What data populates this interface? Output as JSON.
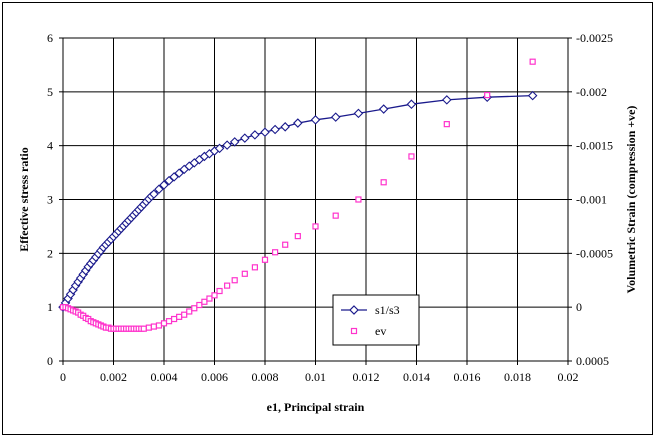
{
  "chart_data": {
    "type": "scatter",
    "xlabel": "e1, Principal strain",
    "ylabel": "Effective stress ratio",
    "y2label": "Volumetric Strain (compression +ve)",
    "xlim": [
      0,
      0.02
    ],
    "ylim": [
      0,
      6
    ],
    "y2lim": [
      0.0005,
      -0.0025
    ],
    "x_ticks": [
      "0",
      "0.002",
      "0.004",
      "0.006",
      "0.008",
      "0.01",
      "0.012",
      "0.014",
      "0.016",
      "0.018",
      "0.02"
    ],
    "y_ticks": [
      "0",
      "1",
      "2",
      "3",
      "4",
      "5",
      "6"
    ],
    "y2_ticks": [
      "-0.0025",
      "-0.002",
      "-0.0015",
      "-0.001",
      "-0.0005",
      "0",
      "0.0005"
    ],
    "grid": true,
    "legend_position": "bottom-center",
    "series": [
      {
        "name": "s1/s3",
        "axis": "left",
        "style": "line-diamond",
        "color": "#1a1a8c",
        "x": [
          0,
          0.0001,
          0.0002,
          0.0003,
          0.0004,
          0.0005,
          0.0006,
          0.0007,
          0.0008,
          0.0009,
          0.001,
          0.0011,
          0.0012,
          0.0013,
          0.0014,
          0.0015,
          0.0016,
          0.0017,
          0.0018,
          0.0019,
          0.002,
          0.0021,
          0.0022,
          0.0023,
          0.0024,
          0.0025,
          0.0026,
          0.0027,
          0.0028,
          0.0029,
          0.003,
          0.0031,
          0.0032,
          0.0033,
          0.0034,
          0.0035,
          0.0036,
          0.0038,
          0.004,
          0.0042,
          0.0044,
          0.0046,
          0.0048,
          0.005,
          0.0052,
          0.0054,
          0.0056,
          0.0058,
          0.006,
          0.0062,
          0.0065,
          0.0068,
          0.0072,
          0.0076,
          0.008,
          0.0084,
          0.0088,
          0.0093,
          0.01,
          0.0108,
          0.0117,
          0.0127,
          0.0138,
          0.0152,
          0.0168,
          0.0186
        ],
        "y": [
          1.0,
          1.08,
          1.16,
          1.24,
          1.32,
          1.4,
          1.47,
          1.54,
          1.61,
          1.68,
          1.75,
          1.81,
          1.87,
          1.93,
          1.99,
          2.05,
          2.11,
          2.16,
          2.21,
          2.26,
          2.31,
          2.36,
          2.41,
          2.46,
          2.51,
          2.56,
          2.61,
          2.66,
          2.71,
          2.76,
          2.81,
          2.86,
          2.91,
          2.96,
          3.01,
          3.06,
          3.1,
          3.19,
          3.27,
          3.35,
          3.42,
          3.49,
          3.56,
          3.62,
          3.68,
          3.74,
          3.8,
          3.85,
          3.9,
          3.95,
          4.01,
          4.07,
          4.14,
          4.2,
          4.25,
          4.3,
          4.35,
          4.42,
          4.48,
          4.53,
          4.6,
          4.68,
          4.77,
          4.85,
          4.9,
          4.93
        ]
      },
      {
        "name": "ev",
        "axis": "right",
        "style": "marker-square",
        "color": "#ff33cc",
        "x": [
          0,
          0.0001,
          0.0002,
          0.0003,
          0.0004,
          0.0005,
          0.0006,
          0.0007,
          0.0008,
          0.0009,
          0.001,
          0.0011,
          0.0012,
          0.0013,
          0.0014,
          0.0015,
          0.0016,
          0.0017,
          0.0018,
          0.0019,
          0.002,
          0.0021,
          0.0022,
          0.0023,
          0.0024,
          0.0025,
          0.0026,
          0.0027,
          0.0028,
          0.0029,
          0.003,
          0.0031,
          0.0032,
          0.0034,
          0.0036,
          0.0038,
          0.004,
          0.0042,
          0.0044,
          0.0046,
          0.0048,
          0.005,
          0.0052,
          0.0054,
          0.0056,
          0.0058,
          0.006,
          0.0062,
          0.0065,
          0.0068,
          0.0072,
          0.0076,
          0.008,
          0.0084,
          0.0088,
          0.0093,
          0.01,
          0.0108,
          0.0117,
          0.0127,
          0.0138,
          0.0152,
          0.0168,
          0.0186
        ],
        "y": [
          0.0,
          0.0,
          1e-05,
          2e-05,
          3e-05,
          4e-05,
          5e-05,
          7e-05,
          8e-05,
          0.0001,
          0.00011,
          0.00013,
          0.00014,
          0.00015,
          0.00016,
          0.00017,
          0.00018,
          0.00019,
          0.00019,
          0.0002,
          0.0002,
          0.0002,
          0.0002,
          0.0002,
          0.0002,
          0.0002,
          0.0002,
          0.0002,
          0.0002,
          0.0002,
          0.0002,
          0.0002,
          0.0002,
          0.00019,
          0.00018,
          0.00017,
          0.00015,
          0.00013,
          0.00011,
          9e-05,
          7e-05,
          4e-05,
          1e-05,
          -2e-05,
          -5e-05,
          -8e-05,
          -0.00011,
          -0.00015,
          -0.0002,
          -0.00025,
          -0.00031,
          -0.00037,
          -0.00044,
          -0.00051,
          -0.00058,
          -0.00066,
          -0.00075,
          -0.00085,
          -0.001,
          -0.00116,
          -0.0014,
          -0.0017,
          -0.00197,
          -0.00228
        ]
      }
    ]
  }
}
